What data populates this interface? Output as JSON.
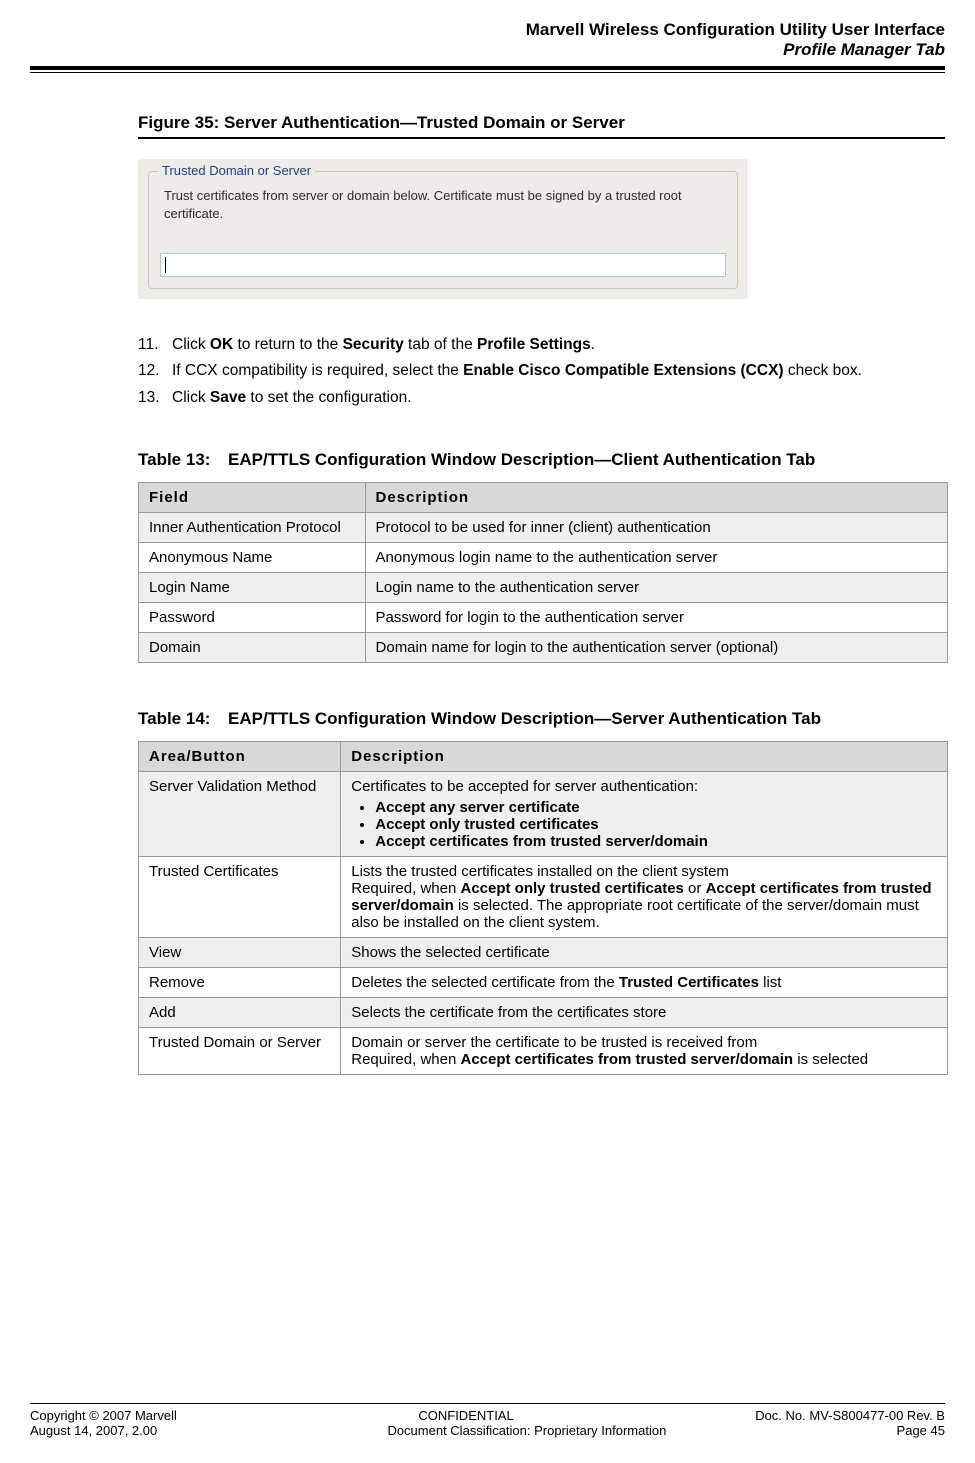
{
  "header": {
    "title": "Marvell Wireless Configuration Utility User Interface",
    "subtitle": "Profile Manager Tab"
  },
  "figure": {
    "caption": "Figure 35: Server Authentication—Trusted Domain or Server",
    "legend": "Trusted Domain or Server",
    "text": "Trust certificates from server or domain below. Certificate must be signed by a trusted root certificate."
  },
  "steps": [
    {
      "num": "11.",
      "html": "Click <b>OK</b> to return to the <b>Security</b> tab of the <b>Profile Settings</b>."
    },
    {
      "num": "12.",
      "html": "If CCX compatibility is required, select the <b>Enable Cisco Compatible Extensions (CCX)</b> check box."
    },
    {
      "num": "13.",
      "html": "Click <b>Save</b> to set the configuration."
    }
  ],
  "table13": {
    "label": "Table 13:",
    "title": "EAP/TTLS Configuration Window Description—Client Authentication Tab",
    "headers": [
      "Field",
      "Description"
    ],
    "rows": [
      [
        "Inner Authentication Protocol",
        "Protocol to be used for inner (client) authentication"
      ],
      [
        "Anonymous Name",
        "Anonymous login name to the authentication server"
      ],
      [
        "Login Name",
        "Login name to the authentication server"
      ],
      [
        "Password",
        "Password for login to the authentication server"
      ],
      [
        "Domain",
        "Domain name for login to the authentication server (optional)"
      ]
    ]
  },
  "table14": {
    "label": "Table 14:",
    "title": "EAP/TTLS Configuration Window Description—Server Authentication Tab",
    "headers": [
      "Area/Button",
      "Description"
    ],
    "rows": [
      {
        "c0": "Server Validation Method",
        "c1_lead": "Certificates to be accepted for server authentication:",
        "c1_list": [
          "Accept any server certificate",
          "Accept only trusted certificates",
          "Accept certificates from trusted server/domain"
        ]
      },
      {
        "c0": "Trusted Certificates",
        "c1_html": "Lists the trusted certificates installed on the client system<br>Required, when <b>Accept only trusted certificates</b> or <b>Accept certificates from trusted server/domain</b> is selected. The appropriate root certificate of the server/domain must also be installed on the client system."
      },
      {
        "c0": "View",
        "c1_html": "Shows the selected certificate"
      },
      {
        "c0": "Remove",
        "c1_html": "Deletes the selected certificate from the <b>Trusted Certificates</b> list"
      },
      {
        "c0": "Add",
        "c1_html": "Selects the certificate from the certificates store"
      },
      {
        "c0": "Trusted Domain or Server",
        "c1_html": "Domain or server the certificate to be trusted is received from<br>Required, when <b>Accept certificates from trusted server/domain</b> is selected"
      }
    ]
  },
  "footer": {
    "l1": "Copyright © 2007 Marvell",
    "c1": "CONFIDENTIAL",
    "r1": "Doc. No. MV-S800477-00 Rev. B",
    "l2": "August 14, 2007, 2.00",
    "c2": "Document Classification: Proprietary Information",
    "r2": "Page 45"
  }
}
